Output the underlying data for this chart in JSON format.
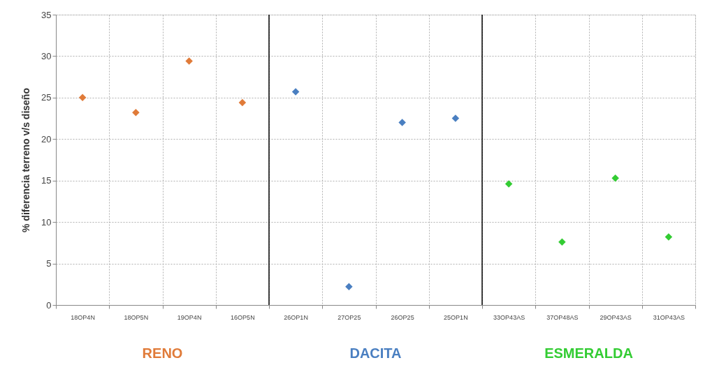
{
  "chart_data": {
    "type": "scatter",
    "ylabel": "% diferencia terreno v/s diseño",
    "categories": [
      "18OP4N",
      "18OP5N",
      "19OP4N",
      "16OP5N",
      "26OP1N",
      "27OP25",
      "26OP25",
      "25OP1N",
      "33OP43AS",
      "37OP48AS",
      "29OP43AS",
      "31OP43AS"
    ],
    "series": [
      {
        "name": "RENO",
        "color": "#e07b39",
        "values": [
          25.0,
          23.2,
          29.4,
          24.4,
          null,
          null,
          null,
          null,
          null,
          null,
          null,
          null
        ]
      },
      {
        "name": "DACITA",
        "color": "#4a7fc1",
        "values": [
          null,
          null,
          null,
          null,
          25.7,
          2.2,
          22.0,
          22.5,
          null,
          null,
          null,
          null
        ]
      },
      {
        "name": "ESMERALDA",
        "color": "#33cc33",
        "values": [
          null,
          null,
          null,
          null,
          null,
          null,
          null,
          null,
          14.6,
          7.6,
          15.3,
          8.2
        ]
      }
    ],
    "ylim": [
      0,
      35
    ],
    "yticks": [
      0,
      5,
      10,
      15,
      20,
      25,
      30,
      35
    ],
    "grid": true,
    "marker": "diamond"
  }
}
